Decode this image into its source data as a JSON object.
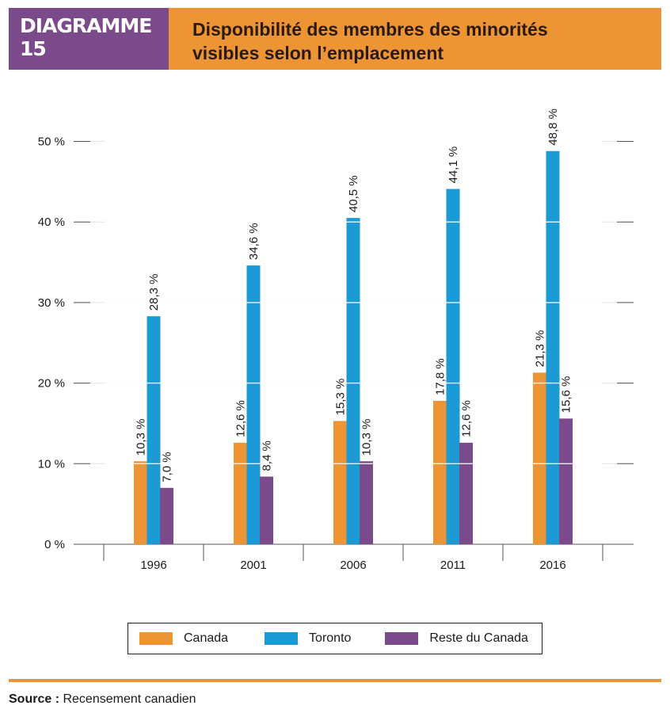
{
  "header": {
    "badge": "DIAGRAMME 15",
    "title_line1": "Disponibilité des membres des minorités",
    "title_line2": "visibles selon l’emplacement"
  },
  "colors": {
    "canada": "#ed9435",
    "toronto": "#1c9ad6",
    "reste": "#7b4a8b",
    "badge": "#7b4a8b",
    "title_bg": "#ed9435"
  },
  "chart_data": {
    "type": "bar",
    "title": "Disponibilité des membres des minorités visibles selon l’emplacement",
    "categories": [
      "1996",
      "2001",
      "2006",
      "2011",
      "2016"
    ],
    "series": [
      {
        "name": "Canada",
        "values": [
          10.3,
          12.6,
          15.3,
          17.8,
          21.3
        ],
        "labels": [
          "10,3 %",
          "12,6 %",
          "15,3 %",
          "17,8 %",
          "21,3 %"
        ]
      },
      {
        "name": "Toronto",
        "values": [
          28.3,
          34.6,
          40.5,
          44.1,
          48.8
        ],
        "labels": [
          "28,3 %",
          "34,6 %",
          "40,5 %",
          "44,1 %",
          "48,8 %"
        ]
      },
      {
        "name": "Reste du Canada",
        "values": [
          7.0,
          8.4,
          10.3,
          12.6,
          15.6
        ],
        "labels": [
          "7,0 %",
          "8,4 %",
          "10,3 %",
          "12,6 %",
          "15,6 %"
        ]
      }
    ],
    "yticks": [
      0,
      10,
      20,
      30,
      40,
      50
    ],
    "ytick_labels": [
      "0 %",
      "10 %",
      "20 %",
      "30 %",
      "40 %",
      "50 %"
    ],
    "ylim": [
      0,
      50
    ],
    "xlabel": "",
    "ylabel": "",
    "legend_position": "bottom"
  },
  "legend": {
    "canada": "Canada",
    "toronto": "Toronto",
    "reste": "Reste du Canada"
  },
  "source": {
    "label": "Source :",
    "text": "Recensement canadien"
  }
}
